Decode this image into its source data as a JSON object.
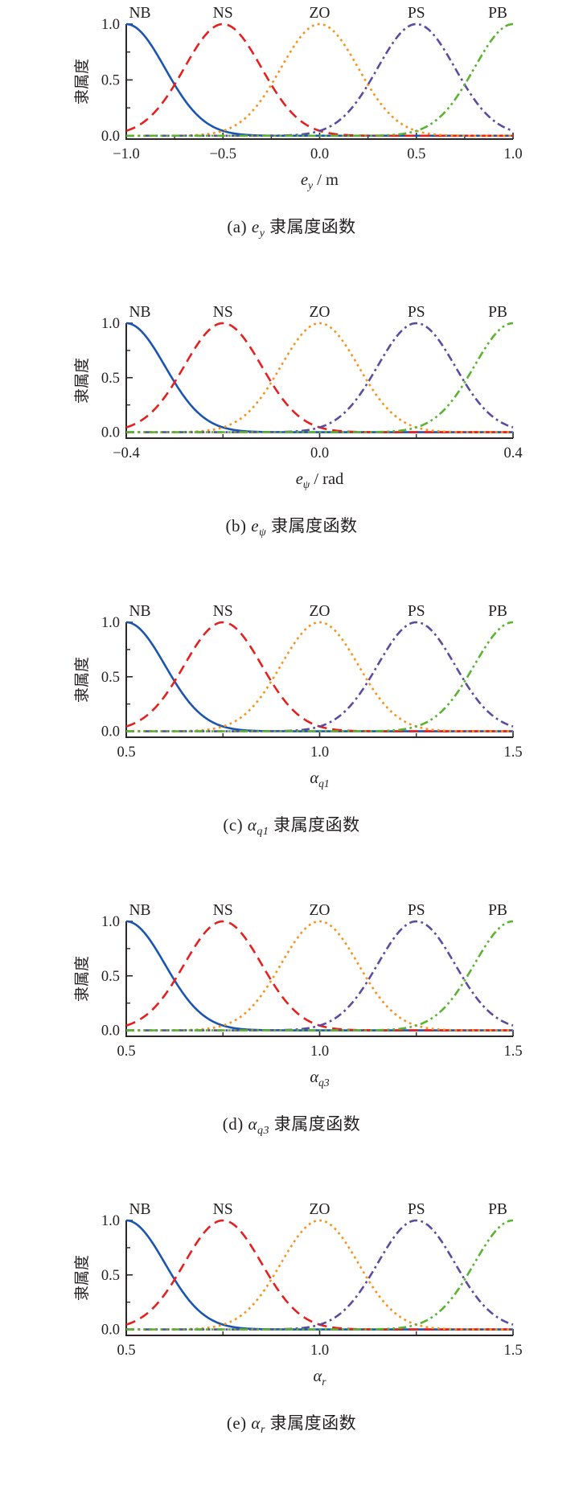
{
  "page": {
    "background": "#ffffff",
    "text_color": "#231f20",
    "axis_color": "#2b2727"
  },
  "series_styles": {
    "NB": {
      "color": "#1b55b2",
      "dash": "solid"
    },
    "NS": {
      "color": "#e6201f",
      "dash": "dashed"
    },
    "ZO": {
      "color": "#f7941d",
      "dash": "dotted"
    },
    "PS": {
      "color": "#5a4da1",
      "dash": "dashdot"
    },
    "PB": {
      "color": "#5bb431",
      "dash": "dashdotdot"
    }
  },
  "chart_data": [
    {
      "type": "line",
      "membership_type": "gaussian",
      "ylabel": "隶属度",
      "xlabel": {
        "var": "e",
        "sub": "y",
        "suffix": " / m"
      },
      "caption": {
        "index": "(a)",
        "var": "e",
        "sub": "y",
        "suffix": " 隶属度函数"
      },
      "peak_labels": [
        "NB",
        "NS",
        "ZO",
        "PS",
        "PB"
      ],
      "series": [
        {
          "name": "NB",
          "center": -1.0,
          "sigma": 0.2,
          "peak": 1.0
        },
        {
          "name": "NS",
          "center": -0.5,
          "sigma": 0.2,
          "peak": 1.0
        },
        {
          "name": "ZO",
          "center": 0.0,
          "sigma": 0.2,
          "peak": 1.0
        },
        {
          "name": "PS",
          "center": 0.5,
          "sigma": 0.2,
          "peak": 1.0
        },
        {
          "name": "PB",
          "center": 1.0,
          "sigma": 0.2,
          "peak": 1.0
        }
      ],
      "xlim": [
        -1.0,
        1.0
      ],
      "ylim": [
        0.0,
        1.0
      ],
      "ylim_draw": [
        -0.03,
        1.0
      ],
      "x_major_ticks": [
        -1.0,
        -0.5,
        0.0,
        0.5,
        1.0
      ],
      "x_major_labels": [
        "−1.0",
        "−0.5",
        "0.0",
        "0.5",
        "1.0"
      ],
      "x_minor_ticks": [
        -0.75,
        -0.25,
        0.25,
        0.75
      ],
      "y_major_ticks": [
        0.0,
        0.5,
        1.0
      ],
      "y_major_labels": [
        "0.0",
        "0.5",
        "1.0"
      ],
      "y_minor_ticks": [
        0.25,
        0.75
      ]
    },
    {
      "type": "line",
      "membership_type": "gaussian",
      "ylabel": "隶属度",
      "xlabel": {
        "var": "e",
        "sub": "ψ",
        "suffix": " / rad"
      },
      "caption": {
        "index": "(b)",
        "var": "e",
        "sub": "ψ",
        "suffix": " 隶属度函数"
      },
      "peak_labels": [
        "NB",
        "NS",
        "ZO",
        "PS",
        "PB"
      ],
      "series": [
        {
          "name": "NB",
          "center": -0.4,
          "sigma": 0.08,
          "peak": 1.0
        },
        {
          "name": "NS",
          "center": -0.2,
          "sigma": 0.08,
          "peak": 1.0
        },
        {
          "name": "ZO",
          "center": 0.0,
          "sigma": 0.08,
          "peak": 1.0
        },
        {
          "name": "PS",
          "center": 0.2,
          "sigma": 0.08,
          "peak": 1.0
        },
        {
          "name": "PB",
          "center": 0.4,
          "sigma": 0.08,
          "peak": 1.0
        }
      ],
      "xlim": [
        -0.4,
        0.4
      ],
      "ylim": [
        0.0,
        1.0
      ],
      "ylim_draw": [
        -0.055,
        1.0
      ],
      "x_major_ticks": [
        -0.4,
        0.0,
        0.4
      ],
      "x_major_labels": [
        "−0.4",
        "0.0",
        "0.4"
      ],
      "x_minor_ticks": [
        -0.2,
        0.2
      ],
      "y_major_ticks": [
        0.0,
        0.5,
        1.0
      ],
      "y_major_labels": [
        "0.0",
        "0.5",
        "1.0"
      ],
      "y_minor_ticks": [
        0.25,
        0.75
      ]
    },
    {
      "type": "line",
      "membership_type": "gaussian",
      "ylabel": "隶属度",
      "xlabel": {
        "var": "α",
        "sub": "q1",
        "suffix": ""
      },
      "caption": {
        "index": "(c)",
        "var": "α",
        "sub": "q1",
        "suffix": " 隶属度函数"
      },
      "peak_labels": [
        "NB",
        "NS",
        "ZO",
        "PS",
        "PB"
      ],
      "series": [
        {
          "name": "NB",
          "center": 0.5,
          "sigma": 0.1,
          "peak": 1.0
        },
        {
          "name": "NS",
          "center": 0.75,
          "sigma": 0.1,
          "peak": 1.0
        },
        {
          "name": "ZO",
          "center": 1.0,
          "sigma": 0.1,
          "peak": 1.0
        },
        {
          "name": "PS",
          "center": 1.25,
          "sigma": 0.1,
          "peak": 1.0
        },
        {
          "name": "PB",
          "center": 1.5,
          "sigma": 0.1,
          "peak": 1.0
        }
      ],
      "xlim": [
        0.5,
        1.5
      ],
      "ylim": [
        0.0,
        1.0
      ],
      "ylim_draw": [
        -0.055,
        1.0
      ],
      "x_major_ticks": [
        0.5,
        1.0,
        1.5
      ],
      "x_major_labels": [
        "0.5",
        "1.0",
        "1.5"
      ],
      "x_minor_ticks": [
        0.75,
        1.25
      ],
      "y_major_ticks": [
        0.0,
        0.5,
        1.0
      ],
      "y_major_labels": [
        "0.0",
        "0.5",
        "1.0"
      ],
      "y_minor_ticks": [
        0.25,
        0.75
      ]
    },
    {
      "type": "line",
      "membership_type": "gaussian",
      "ylabel": "隶属度",
      "xlabel": {
        "var": "α",
        "sub": "q3",
        "suffix": ""
      },
      "caption": {
        "index": "(d)",
        "var": "α",
        "sub": "q3",
        "suffix": " 隶属度函数"
      },
      "peak_labels": [
        "NB",
        "NS",
        "ZO",
        "PS",
        "PB"
      ],
      "series": [
        {
          "name": "NB",
          "center": 0.5,
          "sigma": 0.1,
          "peak": 1.0
        },
        {
          "name": "NS",
          "center": 0.75,
          "sigma": 0.1,
          "peak": 1.0
        },
        {
          "name": "ZO",
          "center": 1.0,
          "sigma": 0.1,
          "peak": 1.0
        },
        {
          "name": "PS",
          "center": 1.25,
          "sigma": 0.1,
          "peak": 1.0
        },
        {
          "name": "PB",
          "center": 1.5,
          "sigma": 0.1,
          "peak": 1.0
        }
      ],
      "xlim": [
        0.5,
        1.5
      ],
      "ylim": [
        0.0,
        1.0
      ],
      "ylim_draw": [
        -0.055,
        1.0
      ],
      "x_major_ticks": [
        0.5,
        1.0,
        1.5
      ],
      "x_major_labels": [
        "0.5",
        "1.0",
        "1.5"
      ],
      "x_minor_ticks": [
        0.75,
        1.25
      ],
      "y_major_ticks": [
        0.0,
        0.5,
        1.0
      ],
      "y_major_labels": [
        "0.0",
        "0.5",
        "1.0"
      ],
      "y_minor_ticks": [
        0.25,
        0.75
      ]
    },
    {
      "type": "line",
      "membership_type": "gaussian",
      "ylabel": "隶属度",
      "xlabel": {
        "var": "α",
        "sub": "r",
        "suffix": ""
      },
      "caption": {
        "index": "(e)",
        "var": "α",
        "sub": "r",
        "suffix": " 隶属度函数"
      },
      "peak_labels": [
        "NB",
        "NS",
        "ZO",
        "PS",
        "PB"
      ],
      "series": [
        {
          "name": "NB",
          "center": 0.5,
          "sigma": 0.1,
          "peak": 1.0
        },
        {
          "name": "NS",
          "center": 0.75,
          "sigma": 0.1,
          "peak": 1.0
        },
        {
          "name": "ZO",
          "center": 1.0,
          "sigma": 0.1,
          "peak": 1.0
        },
        {
          "name": "PS",
          "center": 1.25,
          "sigma": 0.1,
          "peak": 1.0
        },
        {
          "name": "PB",
          "center": 1.5,
          "sigma": 0.1,
          "peak": 1.0
        }
      ],
      "xlim": [
        0.5,
        1.5
      ],
      "ylim": [
        0.0,
        1.0
      ],
      "ylim_draw": [
        -0.055,
        1.0
      ],
      "x_major_ticks": [
        0.5,
        1.0,
        1.5
      ],
      "x_major_labels": [
        "0.5",
        "1.0",
        "1.5"
      ],
      "x_minor_ticks": [
        0.75,
        1.25
      ],
      "y_major_ticks": [
        0.0,
        0.5,
        1.0
      ],
      "y_major_labels": [
        "0.0",
        "0.5",
        "1.0"
      ],
      "y_minor_ticks": [
        0.25,
        0.75
      ]
    }
  ]
}
